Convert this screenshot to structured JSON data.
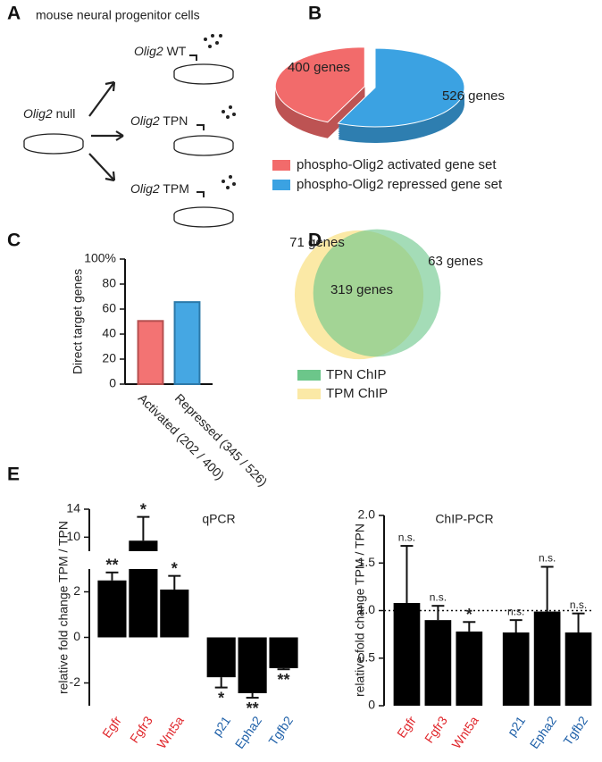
{
  "panel_labels": [
    "A",
    "B",
    "C",
    "D",
    "E"
  ],
  "diagram": {
    "title": "mouse neural progenitor cells",
    "start": {
      "gene": "Olig2",
      "variant": "null"
    },
    "conditions": [
      {
        "gene": "Olig2",
        "variant": "WT"
      },
      {
        "gene": "Olig2",
        "variant": "TPN"
      },
      {
        "gene": "Olig2",
        "variant": "TPM"
      }
    ]
  },
  "chart_data": [
    {
      "type": "pie",
      "categories": [
        "phospho-Olig2 activated gene set",
        "phospho-Olig2 repressed gene set"
      ],
      "values": [
        400,
        526
      ],
      "value_labels": [
        "400 genes",
        "526 genes"
      ],
      "colors": [
        "#f26b6b",
        "#3ba2e2"
      ]
    },
    {
      "type": "bar",
      "y_label": "Direct target genes",
      "categories": [
        "Activated (202 / 400)",
        "Repressed (345 / 526)"
      ],
      "values": [
        50.5,
        65.6
      ],
      "colors": [
        "#f26b6b",
        "#3ba2e2"
      ],
      "ylim": [
        0,
        100
      ],
      "yticks": [
        0,
        20,
        40,
        60,
        80,
        {
          "value": 100,
          "label": "100%"
        }
      ]
    },
    {
      "type": "venn",
      "series": [
        {
          "name": "TPN ChIP",
          "color": "#6cc68a"
        },
        {
          "name": "TPM ChIP",
          "color": "#fbe9a6"
        }
      ],
      "values": [
        71,
        319,
        63
      ],
      "value_labels": [
        "71 genes",
        "319 genes",
        "63 genes"
      ]
    },
    {
      "type": "bar",
      "title": "qPCR",
      "y_label": "relative fold change TPM / TPN",
      "categories": [
        "Egfr",
        "Fgfr3",
        "Wnt5a",
        "p21",
        "Epha2",
        "Tgfb2"
      ],
      "category_colors": [
        "#e0262b",
        "#e0262b",
        "#e0262b",
        "#1d5fa8",
        "#1d5fa8",
        "#1d5fa8"
      ],
      "values": [
        2.5,
        9.5,
        2.1,
        -1.75,
        -2.45,
        -1.35
      ],
      "errors": [
        0.35,
        3.4,
        0.6,
        0.45,
        0.2,
        0.05
      ],
      "annotations": [
        "**",
        "*",
        "*",
        "*",
        "**",
        "**"
      ],
      "color": "#000000",
      "ylim": [
        -3,
        14
      ],
      "axis_break": [
        3,
        8
      ],
      "yticks": [
        -2,
        0,
        2,
        10,
        14
      ]
    },
    {
      "type": "bar",
      "title": "ChIP-PCR",
      "y_label": "relative fold change TPM / TPN",
      "categories": [
        "Egfr",
        "Fgfr3",
        "Wnt5a",
        "p21",
        "Epha2",
        "Tgfb2"
      ],
      "category_colors": [
        "#e0262b",
        "#e0262b",
        "#e0262b",
        "#1d5fa8",
        "#1d5fa8",
        "#1d5fa8"
      ],
      "values": [
        1.08,
        0.9,
        0.78,
        0.77,
        0.99,
        0.77
      ],
      "errors": [
        0.6,
        0.15,
        0.1,
        0.13,
        0.47,
        0.2
      ],
      "annotations": [
        "n.s.",
        "n.s.",
        "*",
        "n.s.",
        "n.s.",
        "n.s."
      ],
      "color": "#000000",
      "ylim": [
        0,
        2
      ],
      "yticks": [
        0,
        0.5,
        {
          "value": 1,
          "label": "1.0"
        },
        1.5,
        {
          "value": 2,
          "label": "2.0"
        }
      ],
      "hline": 1
    }
  ]
}
